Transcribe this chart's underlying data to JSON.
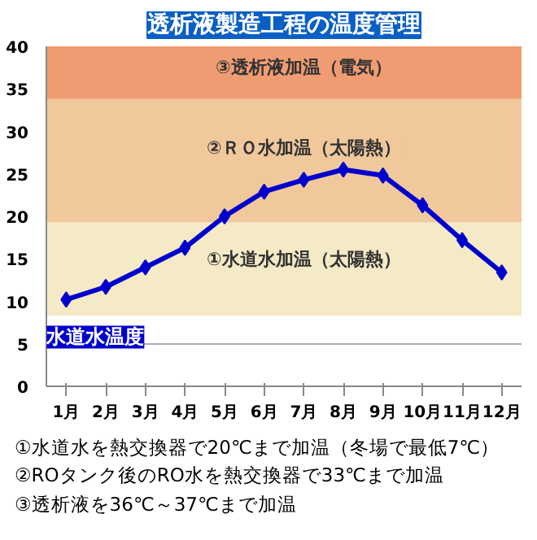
{
  "chart_data": {
    "type": "line",
    "title": "透析液製造工程の温度管理",
    "categories": [
      "1月",
      "2月",
      "3月",
      "4月",
      "5月",
      "6月",
      "7月",
      "8月",
      "9月",
      "10月",
      "11月",
      "12月"
    ],
    "series": [
      {
        "name": "水道水温度",
        "color": "#0000cc",
        "values": [
          10.2,
          11.7,
          14,
          16.3,
          20,
          22.9,
          24.3,
          25.5,
          24.8,
          21.3,
          17.2,
          13.4
        ]
      }
    ],
    "ylim": [
      0,
      40
    ],
    "yticks": [
      0,
      5,
      10,
      15,
      20,
      25,
      30,
      35,
      40
    ],
    "grid": "y",
    "marker": "diamond",
    "legend": false,
    "bands": [
      {
        "axis": "y",
        "from": 8.3,
        "to": 19.3,
        "label": "①水道水加温（太陽熱）",
        "color": "#f5eac6"
      },
      {
        "axis": "y",
        "from": 19.3,
        "to": 33.8,
        "label": "②ＲＯ水加温（太陽熱）",
        "color": "#f0c89c"
      },
      {
        "axis": "y",
        "from": 33.8,
        "to": 40,
        "label": "③透析液加温（電気）",
        "color": "#f09c72"
      }
    ],
    "annotations": [
      "①水道水を熱交換器で20℃まで加温（冬場で最低7℃）",
      "②ROタンク後のRO水を熱交換器で33℃まで加温",
      "③透析液を36℃～37℃まで加温"
    ]
  }
}
